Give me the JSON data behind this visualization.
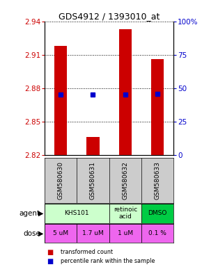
{
  "title": "GDS4912 / 1393010_at",
  "samples": [
    "GSM580630",
    "GSM580631",
    "GSM580632",
    "GSM580633"
  ],
  "bar_bottoms": [
    2.82,
    2.82,
    2.82,
    2.82
  ],
  "bar_tops": [
    2.918,
    2.836,
    2.933,
    2.906
  ],
  "percentile_values": [
    2.874,
    2.874,
    2.874,
    2.875
  ],
  "ylim_left": [
    2.82,
    2.94
  ],
  "yticks_left": [
    2.82,
    2.85,
    2.88,
    2.91,
    2.94
  ],
  "yticks_right": [
    0,
    25,
    50,
    75,
    100
  ],
  "bar_color": "#cc0000",
  "percentile_color": "#0000cc",
  "agent_spans": [
    {
      "start": 0,
      "end": 2,
      "label": "KHS101",
      "color": "#ccffcc"
    },
    {
      "start": 2,
      "end": 3,
      "label": "retinoic\nacid",
      "color": "#ccffcc"
    },
    {
      "start": 3,
      "end": 4,
      "label": "DMSO",
      "color": "#00cc44"
    }
  ],
  "dose_labels": [
    "5 uM",
    "1.7 uM",
    "1 uM",
    "0.1 %"
  ],
  "dose_colors": [
    "#ee66ee",
    "#ee66ee",
    "#ee66ee",
    "#ee66ee"
  ],
  "background_color": "#ffffff",
  "sample_bg": "#cccccc"
}
